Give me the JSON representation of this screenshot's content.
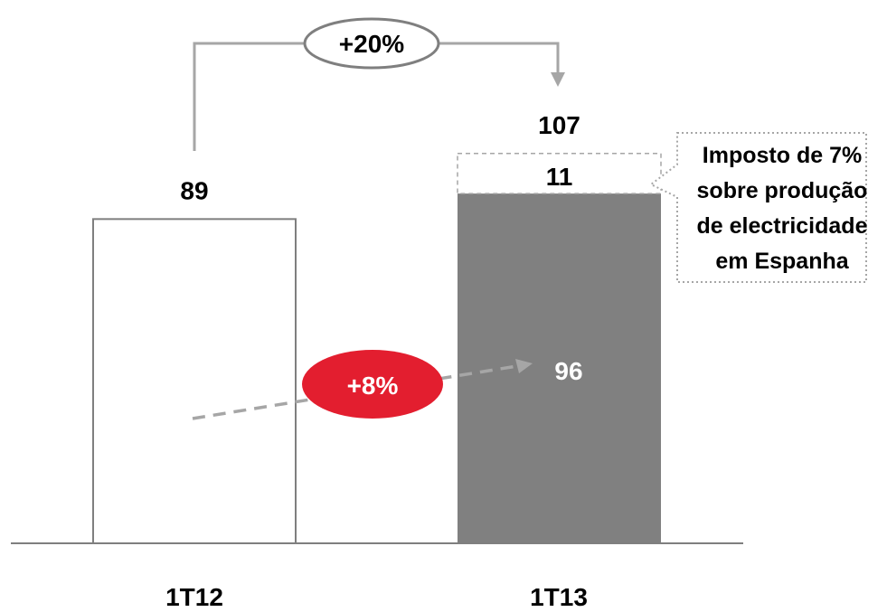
{
  "chart_data": {
    "type": "bar",
    "categories": [
      "1T12",
      "1T13"
    ],
    "series": [
      {
        "values": [
          89,
          96
        ]
      },
      {
        "values": [
          0,
          11
        ]
      }
    ],
    "totals": [
      "89",
      "107"
    ],
    "base_label_1t13": "96",
    "tax_label": "11",
    "ylim": [
      0,
      120
    ],
    "growth_total": "+20%",
    "growth_base": "+8%",
    "callout": [
      "Imposto de 7%",
      "sobre produção",
      "de electricidade",
      "em Espanha"
    ]
  },
  "colors": {
    "bar_1t12_fill": "#ffffff",
    "bar_1t12_stroke": "#7f7f7f",
    "bar_1t13_fill": "#808080",
    "accent_red": "#e31e2f",
    "axis": "#7f7f7f",
    "dashed_connector": "#a6a6a6"
  }
}
